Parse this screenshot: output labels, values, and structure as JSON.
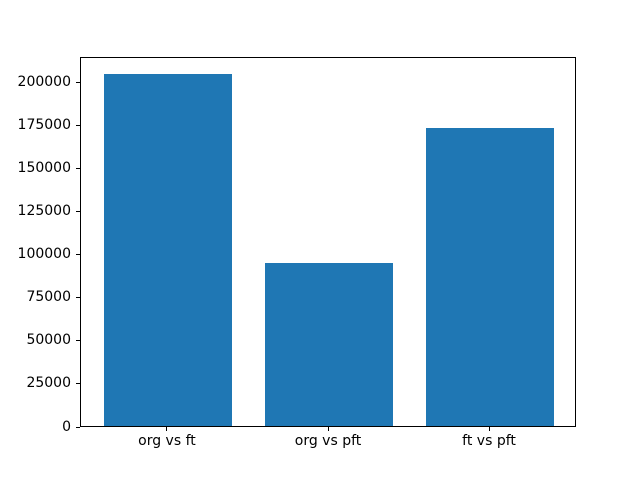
{
  "figure": {
    "background": "#ffffff",
    "spine_color": "#000000",
    "tick_color": "#000000",
    "text_color": "#000000"
  },
  "chart_data": {
    "type": "bar",
    "categories": [
      "org vs ft",
      "org vs pft",
      "ft vs pft"
    ],
    "values": [
      204600,
      94800,
      173200
    ],
    "bar_color": "#1f77b4",
    "title": "",
    "xlabel": "",
    "ylabel": "",
    "ylim": [
      0,
      214800
    ],
    "xlim": [
      -0.54,
      2.54
    ],
    "bar_width": 0.8,
    "yticks": [
      0,
      25000,
      50000,
      75000,
      100000,
      125000,
      150000,
      175000,
      200000
    ],
    "ytick_labels": [
      "0",
      "25000",
      "50000",
      "75000",
      "100000",
      "125000",
      "150000",
      "175000",
      "200000"
    ],
    "grid": false,
    "legend": "none"
  }
}
